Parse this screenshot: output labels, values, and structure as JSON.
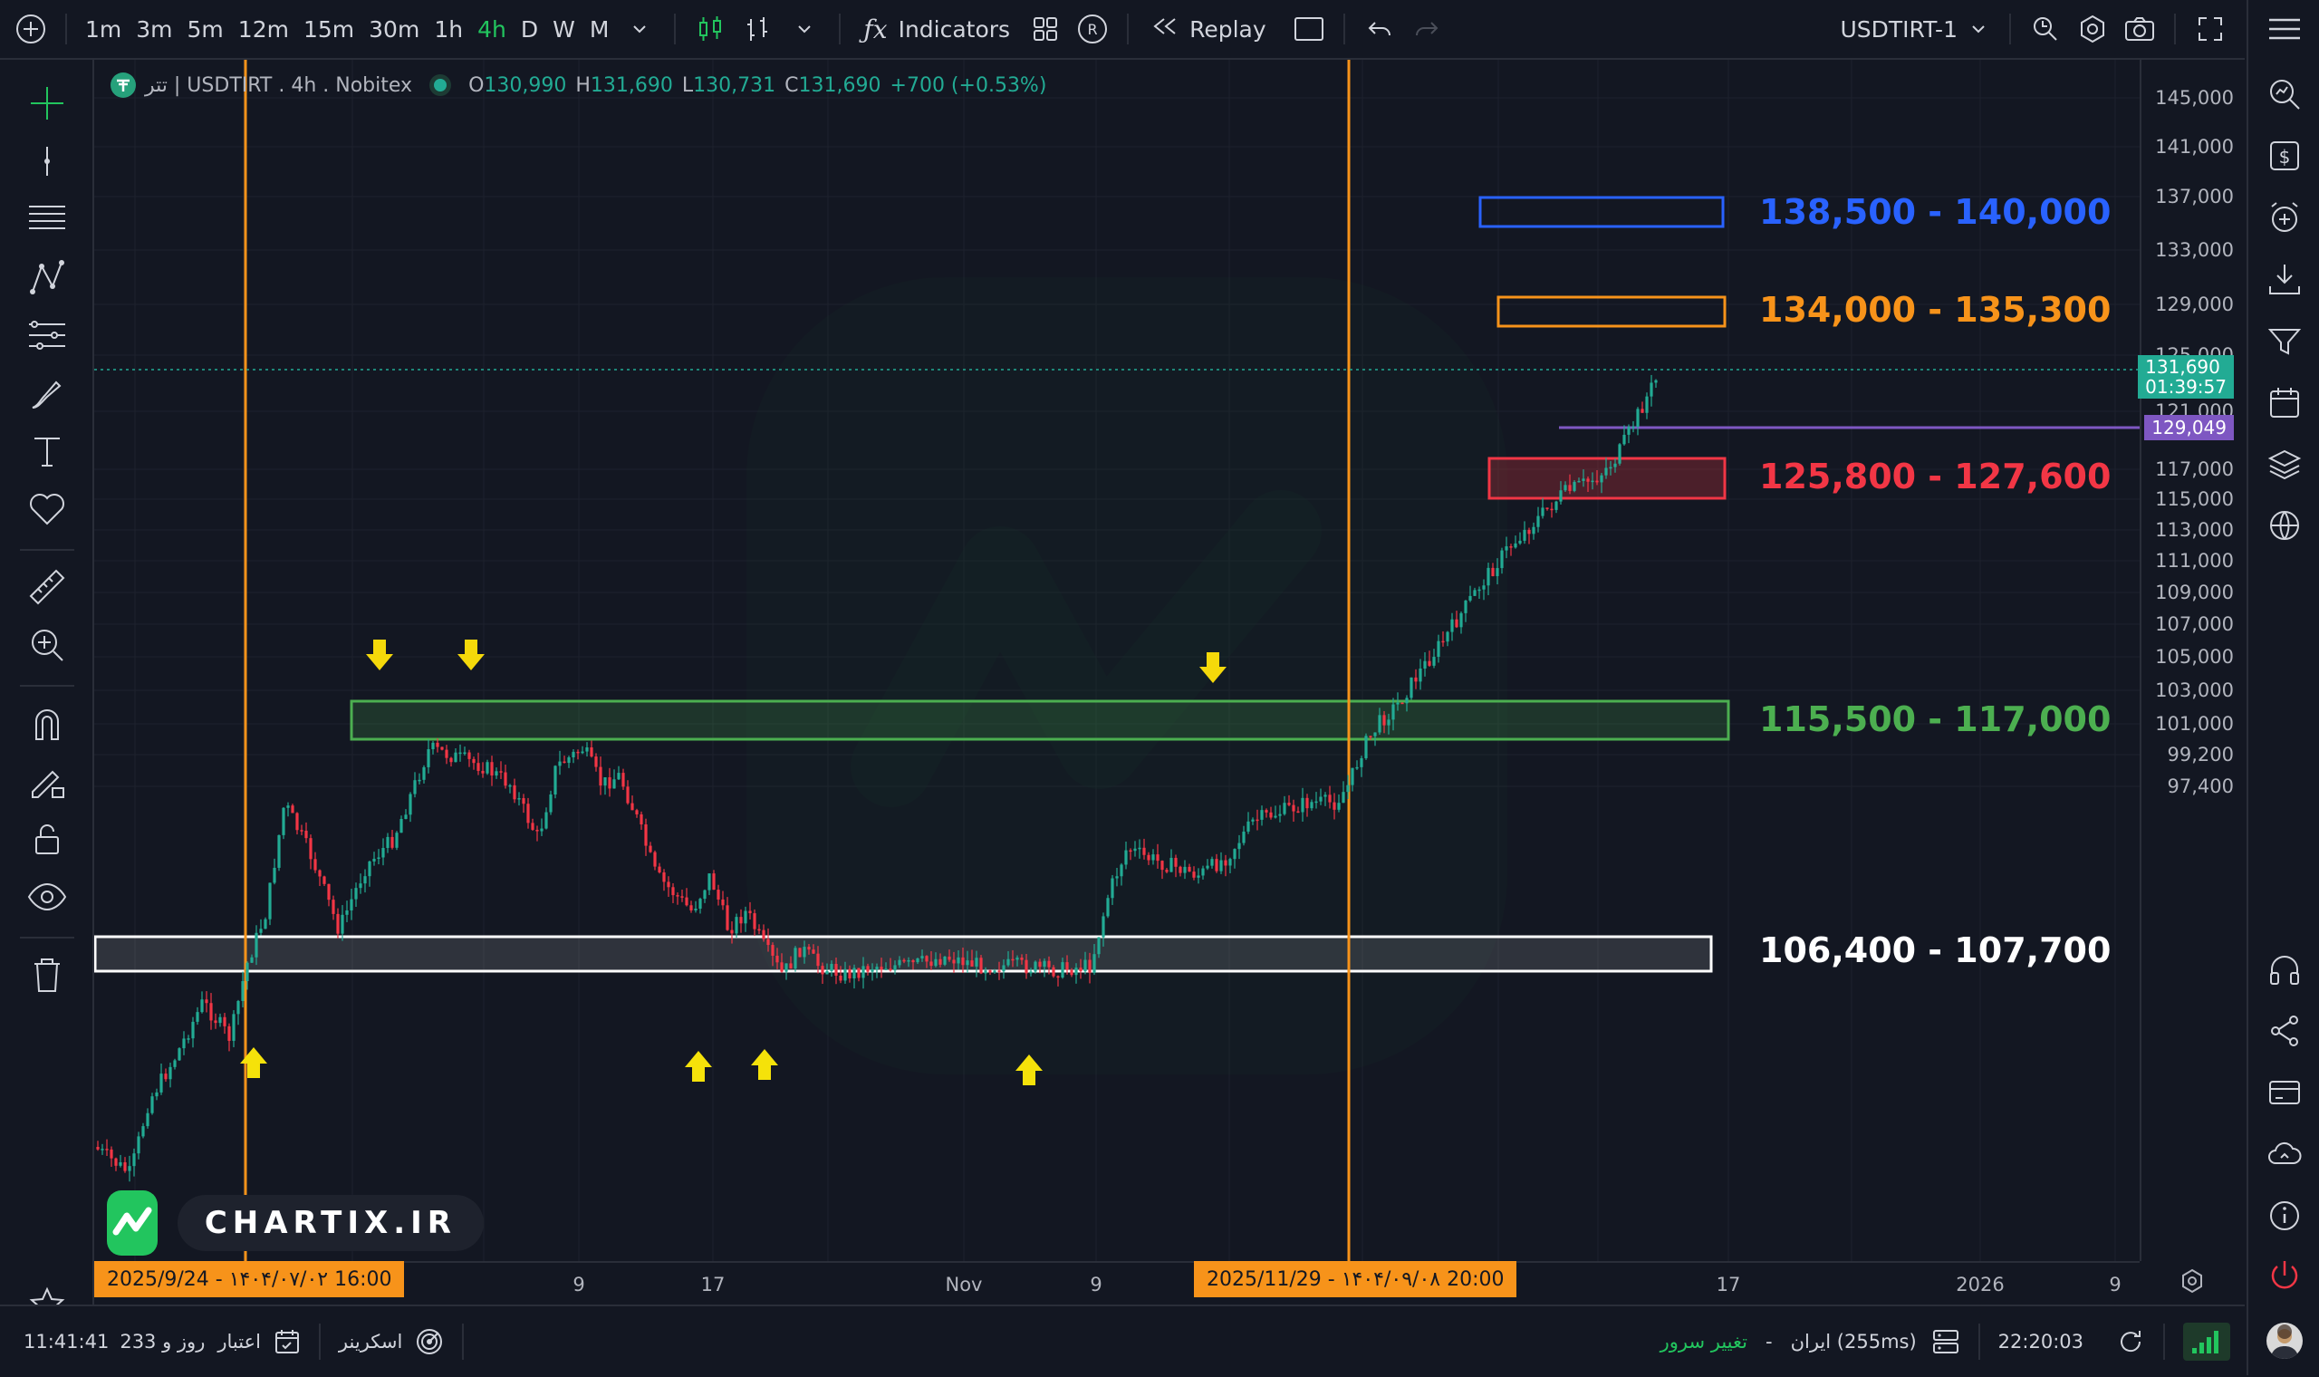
{
  "toolbar": {
    "timeframes": [
      "1m",
      "3m",
      "5m",
      "12m",
      "15m",
      "30m",
      "1h",
      "4h",
      "D",
      "W",
      "M"
    ],
    "active_timeframe": "4h",
    "indicators_label": "Indicators",
    "replay_label": "Replay",
    "symbol": "USDTIRT-1"
  },
  "legend": {
    "title": "تتر | USDTIRT . 4h . Nobitex",
    "o_label": "O",
    "o": "130,990",
    "h_label": "H",
    "h": "131,690",
    "l_label": "L",
    "l": "130,731",
    "c_label": "C",
    "c": "131,690",
    "change": "+700 (+0.53%)"
  },
  "price_axis": {
    "ticks": [
      "145,000",
      "141,000",
      "137,000",
      "133,000",
      "129,000",
      "125,000",
      "121,000",
      "117,000",
      "115,000",
      "113,000",
      "111,000",
      "109,000",
      "107,000",
      "105,000",
      "103,000",
      "101,000",
      "99,200",
      "97,400"
    ],
    "current_price": "131,690",
    "countdown": "01:39:57",
    "line_price": "129,049"
  },
  "time_axis": {
    "ticks": [
      "9",
      "17",
      "Nov",
      "9",
      "17",
      "17",
      "2026",
      "9"
    ],
    "start_marker": "2025/9/24 - ۱۴۰۴/۰۷/۰۲   16:00",
    "end_marker": "2025/11/29 - ۱۴۰۴/۰۹/۰۸   20:00"
  },
  "zones": [
    {
      "label": "138,500 - 140,000",
      "color": "#2962ff"
    },
    {
      "label": "134,000 - 135,300",
      "color": "#f7931a"
    },
    {
      "label": "125,800 - 127,600",
      "color": "#f23645"
    },
    {
      "label": "115,500 - 117,000",
      "color": "#4caf50"
    },
    {
      "label": "106,400 - 107,700",
      "color": "#ffffff"
    }
  ],
  "watermark": "CHARTIX.IR",
  "bottombar": {
    "time_left": "11:41:41",
    "credit": "233 روز و",
    "credit_label": "اعتبار",
    "screener_label": "اسکرینر",
    "change_server": "تغییر سرور",
    "dash": "-",
    "server": "ایران (255ms)",
    "clock": "22:20:03"
  },
  "colors": {
    "up": "#22ab94",
    "down": "#f23645",
    "bg": "#131722",
    "grid": "#1e222d",
    "accent": "#22c55e"
  }
}
